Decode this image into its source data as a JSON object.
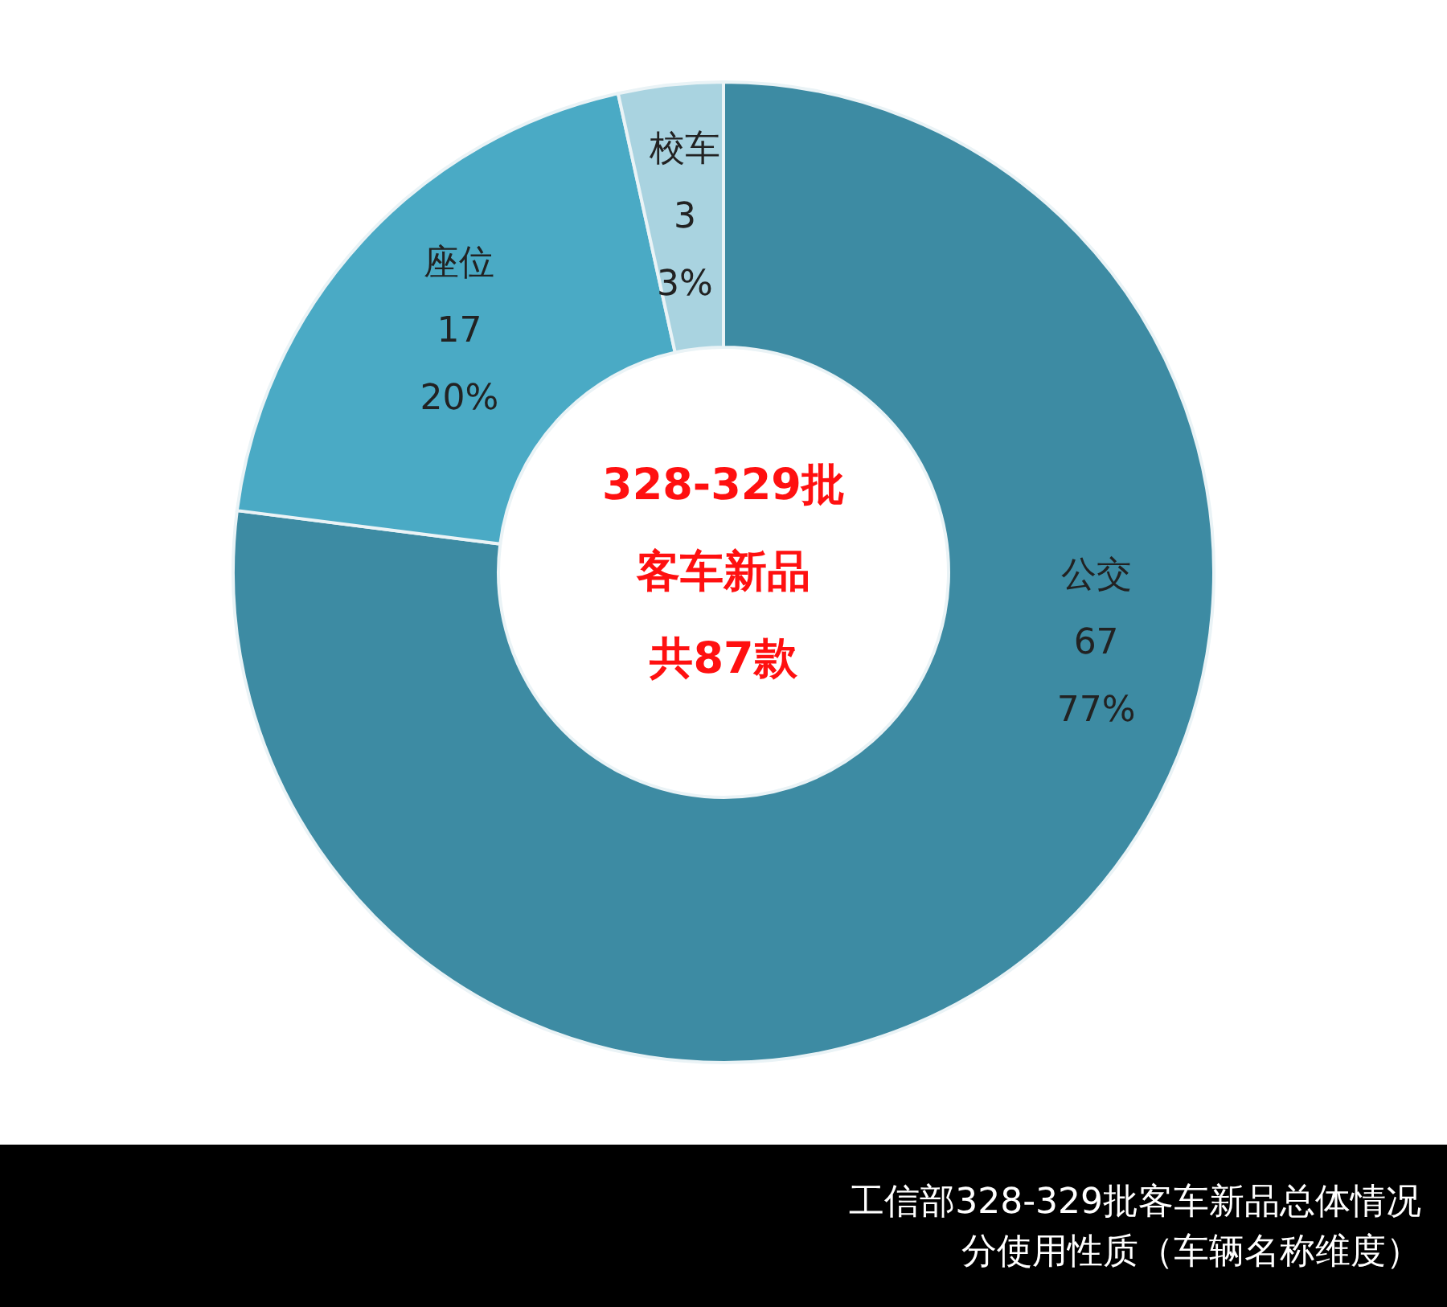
{
  "chart_data": {
    "type": "donut",
    "title": "工信部328-329批客车新品总体情况",
    "subtitle": "分使用性质（车辆名称维度）",
    "categories": [
      "公交",
      "座位",
      "校车"
    ],
    "values": [
      67,
      17,
      3
    ],
    "colors": [
      "#3d8ba3",
      "#4aaac5",
      "#a9d3e0"
    ],
    "value_labels": [
      "67\n77%",
      "17\n20%",
      "3\n3%"
    ],
    "annotations": [
      "328-329批",
      "客车新品",
      "共87款"
    ],
    "legend": false
  }
}
